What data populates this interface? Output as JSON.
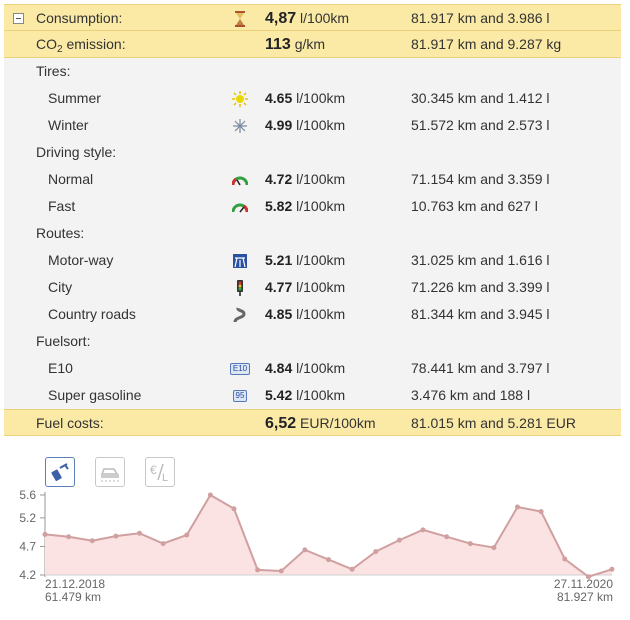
{
  "summary": {
    "consumption": {
      "label": "Consumption:",
      "value": "4,87",
      "unit": "l/100km",
      "total": "81.917 km and 3.986 l"
    },
    "co2": {
      "label_prefix": "CO",
      "label_sub": "2",
      "label_suffix": " emission:",
      "value": "113",
      "unit": "g/km",
      "total": "81.917 km and 9.287 kg"
    },
    "costs": {
      "label": "Fuel costs:",
      "value": "6,52",
      "unit": "EUR/100km",
      "total": "81.015 km and 5.281 EUR"
    }
  },
  "groups": [
    {
      "title": "Tires:",
      "items": [
        {
          "label": "Summer",
          "icon": "sun-icon",
          "value": "4.65",
          "unit": "l/100km",
          "total": "30.345 km and 1.412 l"
        },
        {
          "label": "Winter",
          "icon": "snowflake-icon",
          "value": "4.99",
          "unit": "l/100km",
          "total": "51.572 km and 2.573 l"
        }
      ]
    },
    {
      "title": "Driving style:",
      "items": [
        {
          "label": "Normal",
          "icon": "gauge-normal-icon",
          "value": "4.72",
          "unit": "l/100km",
          "total": "71.154 km and 3.359 l"
        },
        {
          "label": "Fast",
          "icon": "gauge-fast-icon",
          "value": "5.82",
          "unit": "l/100km",
          "total": "10.763 km and 627 l"
        }
      ]
    },
    {
      "title": "Routes:",
      "items": [
        {
          "label": "Motor-way",
          "icon": "motorway-icon",
          "value": "5.21",
          "unit": "l/100km",
          "total": "31.025 km and 1.616 l"
        },
        {
          "label": "City",
          "icon": "traffic-light-icon",
          "value": "4.77",
          "unit": "l/100km",
          "total": "71.226 km and 3.399 l"
        },
        {
          "label": "Country roads",
          "icon": "winding-road-icon",
          "value": "4.85",
          "unit": "l/100km",
          "total": "81.344 km and 3.945 l"
        }
      ]
    },
    {
      "title": "Fuelsort:",
      "items": [
        {
          "label": "E10",
          "icon": "e10-badge-icon",
          "badge": "E10",
          "value": "4.84",
          "unit": "l/100km",
          "total": "78.441 km and 3.797 l"
        },
        {
          "label": "Super gasoline",
          "icon": "95-badge-icon",
          "badge": "95",
          "value": "5.42",
          "unit": "l/100km",
          "total": "3.476 km and 188 l"
        }
      ]
    }
  ],
  "chart_tabs": [
    {
      "name": "fuel-pump-icon",
      "active": true
    },
    {
      "name": "car-icon",
      "active": false
    },
    {
      "name": "euro-per-liter-icon",
      "active": false
    }
  ],
  "chart_data": {
    "type": "area",
    "x_start": {
      "date": "21.12.2018",
      "km": "61.479 km"
    },
    "x_end": {
      "date": "27.11.2020",
      "km": "81.927 km"
    },
    "y_ticks": [
      "5.6",
      "5.2",
      "4.7",
      "4.2"
    ],
    "ylim": [
      4.2,
      5.6
    ],
    "values": [
      4.91,
      4.87,
      4.8,
      4.88,
      4.93,
      4.75,
      4.9,
      5.6,
      5.36,
      4.29,
      4.27,
      4.64,
      4.47,
      4.3,
      4.61,
      4.81,
      4.99,
      4.87,
      4.75,
      4.68,
      5.39,
      5.31,
      4.48,
      4.17,
      4.3
    ],
    "line_color": "#d0a0a0",
    "fill_color": "#fbe3e3"
  }
}
